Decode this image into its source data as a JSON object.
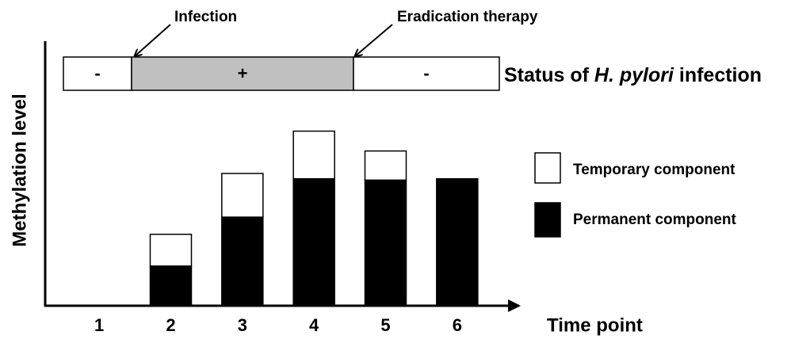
{
  "chart_data": {
    "type": "stacked-bar",
    "x_label": "Time point",
    "y_label": "Methylation level",
    "categories": [
      "1",
      "2",
      "3",
      "4",
      "5",
      "6"
    ],
    "series": [
      {
        "name": "Permanent component",
        "color": "#000000",
        "values": [
          0,
          15,
          33.5,
          48,
          47.5,
          48
        ]
      },
      {
        "name": "Temporary component",
        "color": "#ffffff",
        "values": [
          0,
          12,
          16.5,
          18,
          11,
          0
        ]
      }
    ],
    "ylim": [
      0,
      100
    ],
    "status": {
      "segments": [
        "-",
        "+",
        "-"
      ],
      "colors": [
        "#ffffff",
        "#c0c0c0",
        "#ffffff"
      ],
      "label": [
        "Status of ",
        "H. pylori",
        " infection"
      ]
    },
    "annotations": [
      "Infection",
      "Eradication therapy"
    ]
  }
}
